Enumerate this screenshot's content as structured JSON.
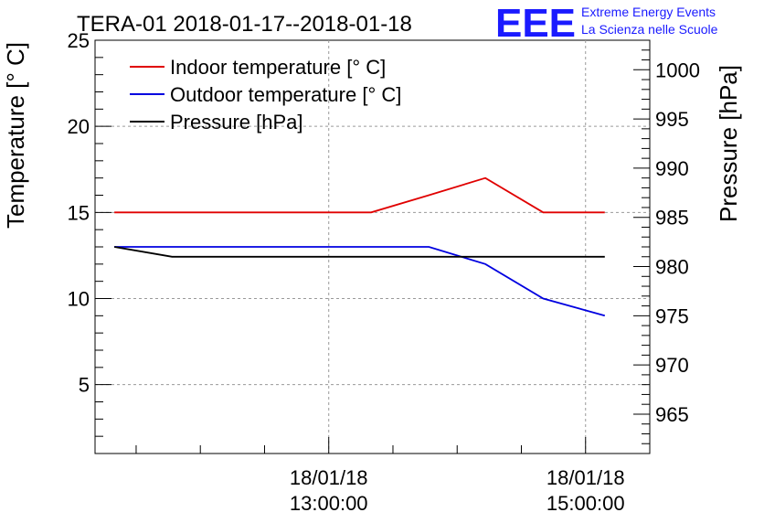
{
  "logo": {
    "mark": "EEE",
    "line1": "Extreme Energy Events",
    "line2": "La Scienza nelle Scuole",
    "color": "#1a1aff"
  },
  "chart_data": {
    "type": "line",
    "title": "TERA-01 2018-01-17--2018-01-18",
    "ylabel": "Temperature [° C]",
    "y2label": "Pressure [hPa]",
    "ylim": [
      1,
      25
    ],
    "y2lim": [
      961,
      1003
    ],
    "yticks": [
      "5",
      "10",
      "15",
      "20",
      "25"
    ],
    "y2ticks": [
      "965",
      "970",
      "975",
      "980",
      "985",
      "990",
      "995",
      "1000"
    ],
    "xticks": [
      {
        "date": "18/01/18",
        "time": "13:00:00",
        "hours": 13
      },
      {
        "date": "18/01/18",
        "time": "15:00:00",
        "hours": 15
      }
    ],
    "xlim_hours": [
      11.18,
      15.5
    ],
    "grid": true,
    "legend_position": "top-left",
    "x_hours": [
      11.33,
      11.78,
      13.33,
      13.78,
      14.22,
      14.67,
      15.15
    ],
    "series": [
      {
        "name": "Indoor temperature [° C]",
        "axis": "left",
        "color": "#e00000",
        "values": [
          15,
          15,
          15,
          16,
          17,
          15,
          15
        ]
      },
      {
        "name": "Outdoor temperature [° C]",
        "axis": "left",
        "color": "#0000e0",
        "values": [
          13,
          13,
          13,
          13,
          12,
          10,
          9
        ]
      },
      {
        "name": "Pressure [hPa]",
        "axis": "right",
        "color": "#000000",
        "values": [
          982,
          981,
          981,
          981,
          981,
          981,
          981
        ]
      }
    ]
  }
}
